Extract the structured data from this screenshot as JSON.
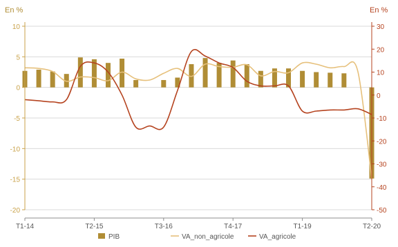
{
  "chart_data": {
    "type": "bar",
    "left_axis_unit": "En %",
    "right_axis_unit": "En %",
    "x_tick_labels": [
      "T1-14",
      "T2-15",
      "T3-16",
      "T4-17",
      "T1-19",
      "T2-20"
    ],
    "categories": [
      "T1-14",
      "T2-14",
      "T3-14",
      "T4-14",
      "T1-15",
      "T2-15",
      "T3-15",
      "T4-15",
      "T1-16",
      "T2-16",
      "T3-16",
      "T4-16",
      "T1-17",
      "T2-17",
      "T3-17",
      "T4-17",
      "T1-18",
      "T2-18",
      "T3-18",
      "T4-18",
      "T1-19",
      "T2-19",
      "T3-19",
      "T4-19",
      "T1-20",
      "T2-20"
    ],
    "y_left": {
      "min": -20,
      "max": 10,
      "ticks": [
        10,
        5,
        0,
        -5,
        -10,
        -15,
        -20
      ]
    },
    "y_right": {
      "min": -50,
      "max": 30,
      "ticks": [
        30,
        20,
        10,
        0,
        -10,
        -20,
        -30,
        -40,
        -50
      ]
    },
    "series": [
      {
        "name": "PIB",
        "kind": "bar",
        "axis": "left",
        "color": "#b08d35",
        "values": [
          2.7,
          2.9,
          2.6,
          2.2,
          4.9,
          4.6,
          4.0,
          4.7,
          1.2,
          null,
          1.2,
          1.6,
          3.8,
          4.8,
          4.0,
          4.4,
          3.8,
          2.7,
          3.1,
          3.1,
          2.7,
          2.5,
          2.4,
          2.3,
          null,
          -14.9
        ]
      },
      {
        "name": "VA_non_agricole",
        "kind": "line",
        "axis": "left",
        "color": "#e6c07b",
        "values": [
          3.2,
          3.1,
          2.6,
          1.0,
          1.7,
          1.6,
          1.1,
          2.5,
          1.4,
          1.2,
          2.3,
          3.1,
          1.8,
          3.8,
          3.4,
          3.3,
          3.7,
          1.9,
          2.6,
          2.4,
          4.0,
          3.8,
          3.2,
          3.4,
          2.6,
          -15.0
        ]
      },
      {
        "name": "VA_agricole",
        "kind": "line",
        "axis": "right",
        "color": "#b5431f",
        "values": [
          -2.0,
          -2.5,
          -3.0,
          -2.0,
          12.5,
          14.0,
          10.0,
          0.0,
          -14.0,
          -13.5,
          -14.0,
          2.0,
          19.0,
          17.0,
          14.0,
          12.0,
          6.0,
          4.0,
          4.0,
          4.0,
          -7.0,
          -7.0,
          -6.5,
          -6.5,
          -6.0,
          -8.5
        ]
      }
    ]
  }
}
